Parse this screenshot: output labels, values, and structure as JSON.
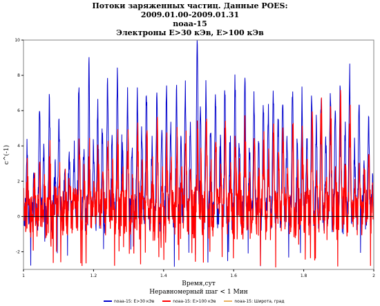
{
  "chart_data": {
    "type": "line",
    "title": "Потоки заряженных частиц. Данные POES:",
    "subtitle_lines": [
      "2009.01.00-2009.01.31",
      "noaa-15",
      "Электроны E>30 кЭв, E>100 кЭв"
    ],
    "xlabel": "Время,сут",
    "xlabel_sub": "Неравномерный шаг < 1 Мин",
    "ylabel": "c^(-1)",
    "xlim": [
      1,
      2
    ],
    "ylim": [
      -3,
      10
    ],
    "x_ticks": [
      1,
      1.2,
      1.4,
      1.6,
      1.8,
      2
    ],
    "x_tick_labels": [
      "1",
      "1.2",
      "1.4",
      "1.6",
      "1.8",
      "2"
    ],
    "y_ticks": [
      -2,
      0,
      2,
      4,
      6,
      8,
      10
    ],
    "y_tick_labels": [
      "-2",
      "0",
      "2",
      "4",
      "6",
      "8",
      "10"
    ],
    "zero_line": true,
    "grid": false,
    "legend_position": "bottom",
    "series": [
      {
        "name": "noaa-15: E>30 кЭв",
        "color": "#0000cc",
        "peaks": [
          {
            "x": 1.01,
            "y": 3.8
          },
          {
            "x": 1.03,
            "y": 2.5
          },
          {
            "x": 1.046,
            "y": 6.0
          },
          {
            "x": 1.058,
            "y": 3.5
          },
          {
            "x": 1.074,
            "y": 6.3
          },
          {
            "x": 1.09,
            "y": 3.2
          },
          {
            "x": 1.101,
            "y": 5.8
          },
          {
            "x": 1.118,
            "y": 3.0
          },
          {
            "x": 1.13,
            "y": 4.2
          },
          {
            "x": 1.145,
            "y": 3.5
          },
          {
            "x": 1.158,
            "y": 7.4
          },
          {
            "x": 1.172,
            "y": 3.6
          },
          {
            "x": 1.187,
            "y": 8.5
          },
          {
            "x": 1.2,
            "y": 4.0
          },
          {
            "x": 1.212,
            "y": 6.2
          },
          {
            "x": 1.225,
            "y": 4.6
          },
          {
            "x": 1.24,
            "y": 7.1
          },
          {
            "x": 1.253,
            "y": 4.5
          },
          {
            "x": 1.268,
            "y": 8.0
          },
          {
            "x": 1.282,
            "y": 4.9
          },
          {
            "x": 1.297,
            "y": 6.6
          },
          {
            "x": 1.31,
            "y": 4.3
          },
          {
            "x": 1.325,
            "y": 6.6
          },
          {
            "x": 1.338,
            "y": 5.1
          },
          {
            "x": 1.351,
            "y": 7.0
          },
          {
            "x": 1.367,
            "y": 4.4
          },
          {
            "x": 1.381,
            "y": 7.2
          },
          {
            "x": 1.395,
            "y": 4.8
          },
          {
            "x": 1.408,
            "y": 7.3
          },
          {
            "x": 1.42,
            "y": 5.3
          },
          {
            "x": 1.437,
            "y": 7.2
          },
          {
            "x": 1.45,
            "y": 4.5
          },
          {
            "x": 1.462,
            "y": 7.2
          },
          {
            "x": 1.476,
            "y": 5.2
          },
          {
            "x": 1.496,
            "y": 10.0
          },
          {
            "x": 1.505,
            "y": 6.1
          },
          {
            "x": 1.521,
            "y": 7.3
          },
          {
            "x": 1.534,
            "y": 5.1
          },
          {
            "x": 1.548,
            "y": 6.9
          },
          {
            "x": 1.562,
            "y": 4.2
          },
          {
            "x": 1.575,
            "y": 7.5
          },
          {
            "x": 1.59,
            "y": 4.5
          },
          {
            "x": 1.604,
            "y": 7.6
          },
          {
            "x": 1.616,
            "y": 4.7
          },
          {
            "x": 1.632,
            "y": 7.5
          },
          {
            "x": 1.645,
            "y": 3.8
          },
          {
            "x": 1.658,
            "y": 6.9
          },
          {
            "x": 1.671,
            "y": 4.3
          },
          {
            "x": 1.685,
            "y": 6.6
          },
          {
            "x": 1.699,
            "y": 5.8
          },
          {
            "x": 1.713,
            "y": 7.0
          },
          {
            "x": 1.727,
            "y": 5.3
          },
          {
            "x": 1.74,
            "y": 7.1
          },
          {
            "x": 1.752,
            "y": 4.3
          },
          {
            "x": 1.768,
            "y": 6.8
          },
          {
            "x": 1.782,
            "y": 4.5
          },
          {
            "x": 1.795,
            "y": 6.6
          },
          {
            "x": 1.809,
            "y": 4.4
          },
          {
            "x": 1.823,
            "y": 6.7
          },
          {
            "x": 1.836,
            "y": 5.1
          },
          {
            "x": 1.849,
            "y": 6.7
          },
          {
            "x": 1.863,
            "y": 4.2
          },
          {
            "x": 1.876,
            "y": 6.6
          },
          {
            "x": 1.89,
            "y": 5.6
          },
          {
            "x": 1.904,
            "y": 7.0
          },
          {
            "x": 1.918,
            "y": 4.9
          },
          {
            "x": 1.931,
            "y": 8.2
          },
          {
            "x": 1.945,
            "y": 3.7
          },
          {
            "x": 1.958,
            "y": 5.8
          },
          {
            "x": 1.972,
            "y": 3.4
          },
          {
            "x": 1.985,
            "y": 5.8
          },
          {
            "x": 1.996,
            "y": 1.8
          }
        ]
      },
      {
        "name": "noaa-15: E>100 кЭв",
        "color": "#ff0000",
        "peaks": [
          {
            "x": 1.011,
            "y": 2.4
          },
          {
            "x": 1.031,
            "y": 1.8
          },
          {
            "x": 1.047,
            "y": 2.8
          },
          {
            "x": 1.06,
            "y": 1.5
          },
          {
            "x": 1.075,
            "y": 3.6
          },
          {
            "x": 1.091,
            "y": 1.6
          },
          {
            "x": 1.102,
            "y": 2.8
          },
          {
            "x": 1.119,
            "y": 1.7
          },
          {
            "x": 1.131,
            "y": 2.5
          },
          {
            "x": 1.146,
            "y": 1.8
          },
          {
            "x": 1.159,
            "y": 4.2
          },
          {
            "x": 1.173,
            "y": 2.0
          },
          {
            "x": 1.188,
            "y": 3.7
          },
          {
            "x": 1.201,
            "y": 2.1
          },
          {
            "x": 1.213,
            "y": 3.5
          },
          {
            "x": 1.226,
            "y": 2.3
          },
          {
            "x": 1.241,
            "y": 4.2
          },
          {
            "x": 1.254,
            "y": 2.5
          },
          {
            "x": 1.269,
            "y": 4.5
          },
          {
            "x": 1.283,
            "y": 2.4
          },
          {
            "x": 1.298,
            "y": 4.1
          },
          {
            "x": 1.311,
            "y": 2.5
          },
          {
            "x": 1.326,
            "y": 4.4
          },
          {
            "x": 1.339,
            "y": 2.7
          },
          {
            "x": 1.352,
            "y": 4.6
          },
          {
            "x": 1.368,
            "y": 2.4
          },
          {
            "x": 1.382,
            "y": 4.7
          },
          {
            "x": 1.396,
            "y": 2.5
          },
          {
            "x": 1.409,
            "y": 4.9
          },
          {
            "x": 1.421,
            "y": 2.8
          },
          {
            "x": 1.438,
            "y": 4.6
          },
          {
            "x": 1.451,
            "y": 2.4
          },
          {
            "x": 1.463,
            "y": 4.7
          },
          {
            "x": 1.477,
            "y": 2.7
          },
          {
            "x": 1.497,
            "y": 5.0
          },
          {
            "x": 1.506,
            "y": 2.9
          },
          {
            "x": 1.522,
            "y": 4.9
          },
          {
            "x": 1.535,
            "y": 2.6
          },
          {
            "x": 1.549,
            "y": 4.2
          },
          {
            "x": 1.563,
            "y": 2.3
          },
          {
            "x": 1.576,
            "y": 4.6
          },
          {
            "x": 1.591,
            "y": 2.5
          },
          {
            "x": 1.605,
            "y": 4.7
          },
          {
            "x": 1.617,
            "y": 2.5
          },
          {
            "x": 1.633,
            "y": 5.2
          },
          {
            "x": 1.646,
            "y": 2.0
          },
          {
            "x": 1.659,
            "y": 4.9
          },
          {
            "x": 1.672,
            "y": 2.3
          },
          {
            "x": 1.686,
            "y": 4.8
          },
          {
            "x": 1.7,
            "y": 3.0
          },
          {
            "x": 1.714,
            "y": 4.6
          },
          {
            "x": 1.728,
            "y": 2.8
          },
          {
            "x": 1.741,
            "y": 4.6
          },
          {
            "x": 1.753,
            "y": 2.3
          },
          {
            "x": 1.769,
            "y": 5.0
          },
          {
            "x": 1.783,
            "y": 2.4
          },
          {
            "x": 1.796,
            "y": 4.9
          },
          {
            "x": 1.81,
            "y": 2.3
          },
          {
            "x": 1.824,
            "y": 5.6
          },
          {
            "x": 1.837,
            "y": 2.7
          },
          {
            "x": 1.85,
            "y": 6.5
          },
          {
            "x": 1.864,
            "y": 2.3
          },
          {
            "x": 1.877,
            "y": 6.2
          },
          {
            "x": 1.891,
            "y": 3.0
          },
          {
            "x": 1.905,
            "y": 6.8
          },
          {
            "x": 1.919,
            "y": 2.6
          },
          {
            "x": 1.932,
            "y": 7.0
          },
          {
            "x": 1.946,
            "y": 2.0
          },
          {
            "x": 1.959,
            "y": 3.3
          },
          {
            "x": 1.973,
            "y": 2.0
          },
          {
            "x": 1.986,
            "y": 3.0
          },
          {
            "x": 1.997,
            "y": 1.0
          }
        ]
      },
      {
        "name": "noaa-15: Широта, град",
        "color": "#e8b060",
        "peaks": []
      }
    ]
  }
}
